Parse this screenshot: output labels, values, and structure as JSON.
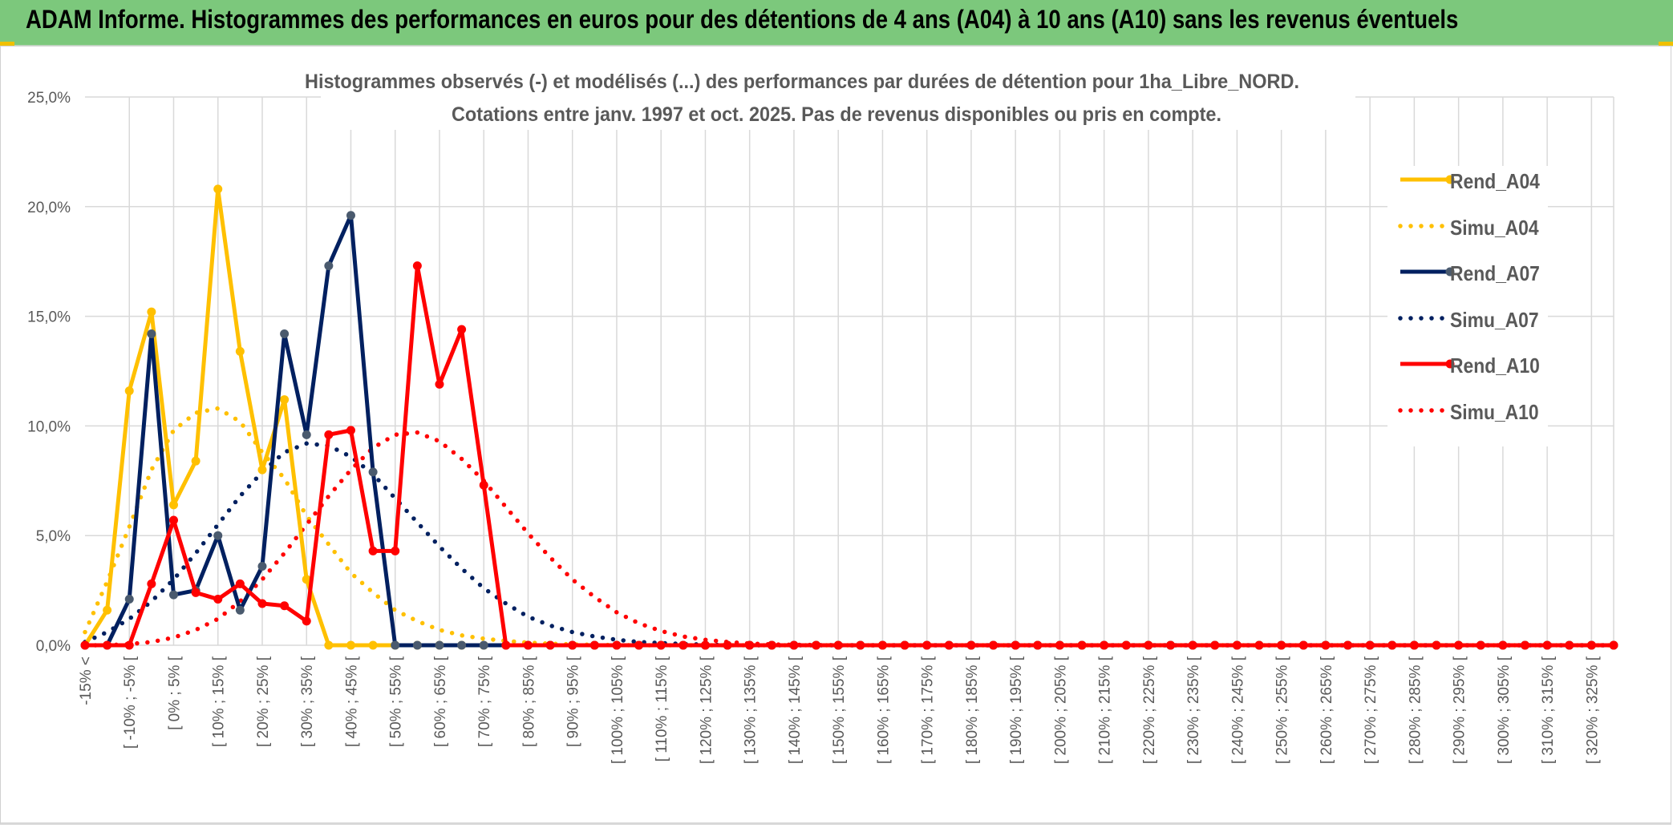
{
  "header": {
    "title": "ADAM Informe. Histogrammes des performances en euros pour des détentions de 4 ans (A04) à 10 ans (A10) sans les revenus éventuels"
  },
  "colors": {
    "header_bg": "#7cc87c",
    "A04": "#FFC000",
    "A07": "#002060",
    "A10": "#FF0000",
    "A07_marker": "#4a5a6e",
    "grid": "#d9d9d9",
    "text": "#595959"
  },
  "chart_data": {
    "type": "line",
    "title_line1": "Histogrammes observés (-) et modélisés (...) des performances par durées de détention pour 1ha_Libre_NORD.",
    "title_line2": "Cotations entre janv. 1997 et oct. 2025. Pas de revenus disponibles ou pris en compte.",
    "ylim": [
      0,
      25
    ],
    "yticks": [
      "0,0%",
      "5,0%",
      "10,0%",
      "15,0%",
      "20,0%",
      "25,0%"
    ],
    "ytick_values": [
      0,
      5,
      10,
      15,
      20,
      25
    ],
    "x_tick_labels": [
      "-15% <",
      "[ -10% ; -5% [",
      "[ 0% ; 5% [",
      "[ 10% ; 15% [",
      "[ 20% ; 25% [",
      "[ 30% ; 35% [",
      "[ 40% ; 45% [",
      "[ 50% ; 55% [",
      "[ 60% ; 65% [",
      "[ 70% ; 75% [",
      "[ 80% ; 85% [",
      "[ 90% ; 95% [",
      "[ 100% ; 105% [",
      "[ 110% ; 115% [",
      "[ 120% ; 125% [",
      "[ 130% ; 135% [",
      "[ 140% ; 145% [",
      "[ 150% ; 155% [",
      "[ 160% ; 165% [",
      "[ 170% ; 175% [",
      "[ 180% ; 185% [",
      "[ 190% ; 195% [",
      "[ 200% ; 205% [",
      "[ 210% ; 215% [",
      "[ 220% ; 225% [",
      "[ 230% ; 235% [",
      "[ 240% ; 245% [",
      "[ 250% ; 255% [",
      "[ 260% ; 265% [",
      "[ 270% ; 275% [",
      "[ 280% ; 285% [",
      "[ 290% ; 295% [",
      "[ 300% ; 305% [",
      "[ 310% ; 315% [",
      "[ 320% ; 325% ["
    ],
    "n_categories": 70,
    "legend_position": "right",
    "series": [
      {
        "name": "Rend_A04",
        "style": "solid",
        "color": "#FFC000",
        "values": [
          0,
          1.6,
          11.6,
          15.2,
          6.4,
          8.4,
          20.8,
          13.4,
          8.0,
          11.2,
          3.0,
          0,
          0,
          0,
          0,
          0,
          0,
          0,
          0,
          0,
          0,
          0,
          0,
          0,
          0,
          0,
          0,
          0,
          0,
          0,
          0,
          0,
          0,
          0,
          0,
          0,
          0,
          0,
          0,
          0,
          0,
          0,
          0,
          0,
          0,
          0,
          0,
          0,
          0,
          0,
          0,
          0,
          0,
          0,
          0,
          0,
          0,
          0,
          0,
          0,
          0,
          0,
          0,
          0,
          0,
          0,
          0,
          0,
          0,
          0
        ]
      },
      {
        "name": "Simu_A04",
        "style": "dotted",
        "color": "#FFC000",
        "values": [
          0.6,
          2.9,
          5.4,
          8.0,
          9.8,
          10.6,
          10.8,
          10.2,
          8.8,
          7.6,
          5.9,
          4.6,
          3.3,
          2.4,
          1.6,
          1.1,
          0.7,
          0.45,
          0.3,
          0.2,
          0.12,
          0.07,
          0.04,
          0.02,
          0.01,
          0,
          0,
          0,
          0,
          0,
          0,
          0,
          0,
          0,
          0,
          0,
          0,
          0,
          0,
          0,
          0,
          0,
          0,
          0,
          0,
          0,
          0,
          0,
          0,
          0,
          0,
          0,
          0,
          0,
          0,
          0,
          0,
          0,
          0,
          0,
          0,
          0,
          0,
          0,
          0,
          0,
          0,
          0,
          0,
          0
        ]
      },
      {
        "name": "Rend_A07",
        "style": "solid",
        "color": "#002060",
        "values": [
          0,
          0,
          2.1,
          14.2,
          2.3,
          2.5,
          5.0,
          1.6,
          3.6,
          14.2,
          9.6,
          17.3,
          19.6,
          7.9,
          0,
          0,
          0,
          0,
          0,
          0,
          0,
          0,
          0,
          0,
          0,
          0,
          0,
          0,
          0,
          0,
          0,
          0,
          0,
          0,
          0,
          0,
          0,
          0,
          0,
          0,
          0,
          0,
          0,
          0,
          0,
          0,
          0,
          0,
          0,
          0,
          0,
          0,
          0,
          0,
          0,
          0,
          0,
          0,
          0,
          0,
          0,
          0,
          0,
          0,
          0,
          0,
          0,
          0,
          0,
          0
        ]
      },
      {
        "name": "Simu_A07",
        "style": "dotted",
        "color": "#002060",
        "values": [
          0.15,
          0.6,
          1.2,
          2.0,
          3.0,
          4.2,
          5.5,
          6.8,
          7.9,
          8.8,
          9.2,
          9.1,
          8.6,
          7.8,
          6.7,
          5.6,
          4.5,
          3.5,
          2.6,
          1.9,
          1.3,
          0.9,
          0.6,
          0.4,
          0.25,
          0.15,
          0.1,
          0.06,
          0.03,
          0.01,
          0,
          0,
          0,
          0,
          0,
          0,
          0,
          0,
          0,
          0,
          0,
          0,
          0,
          0,
          0,
          0,
          0,
          0,
          0,
          0,
          0,
          0,
          0,
          0,
          0,
          0,
          0,
          0,
          0,
          0,
          0,
          0,
          0,
          0,
          0,
          0,
          0,
          0,
          0,
          0
        ]
      },
      {
        "name": "Rend_A10",
        "style": "solid",
        "color": "#FF0000",
        "values": [
          0,
          0,
          0,
          2.8,
          5.7,
          2.4,
          2.1,
          2.8,
          1.9,
          1.8,
          1.1,
          9.6,
          9.8,
          4.3,
          4.3,
          17.3,
          11.9,
          14.4,
          7.3,
          0,
          0,
          0,
          0,
          0,
          0,
          0,
          0,
          0,
          0,
          0,
          0,
          0,
          0,
          0,
          0,
          0,
          0,
          0,
          0,
          0,
          0,
          0,
          0,
          0,
          0,
          0,
          0,
          0,
          0,
          0,
          0,
          0,
          0,
          0,
          0,
          0,
          0,
          0,
          0,
          0,
          0,
          0,
          0,
          0,
          0,
          0,
          0,
          0,
          0,
          0
        ]
      },
      {
        "name": "Simu_A10",
        "style": "dotted",
        "color": "#FF0000",
        "values": [
          0,
          0,
          0.05,
          0.15,
          0.35,
          0.7,
          1.2,
          2.0,
          3.0,
          4.2,
          5.5,
          6.8,
          8.0,
          9.0,
          9.6,
          9.7,
          9.3,
          8.5,
          7.5,
          6.3,
          5.1,
          4.0,
          3.0,
          2.2,
          1.5,
          1.0,
          0.65,
          0.4,
          0.25,
          0.15,
          0.08,
          0.04,
          0.02,
          0.01,
          0,
          0,
          0,
          0,
          0,
          0,
          0,
          0,
          0,
          0,
          0,
          0,
          0,
          0,
          0,
          0,
          0,
          0,
          0,
          0,
          0,
          0,
          0,
          0,
          0,
          0,
          0,
          0,
          0,
          0,
          0,
          0,
          0,
          0,
          0,
          0
        ]
      }
    ]
  }
}
